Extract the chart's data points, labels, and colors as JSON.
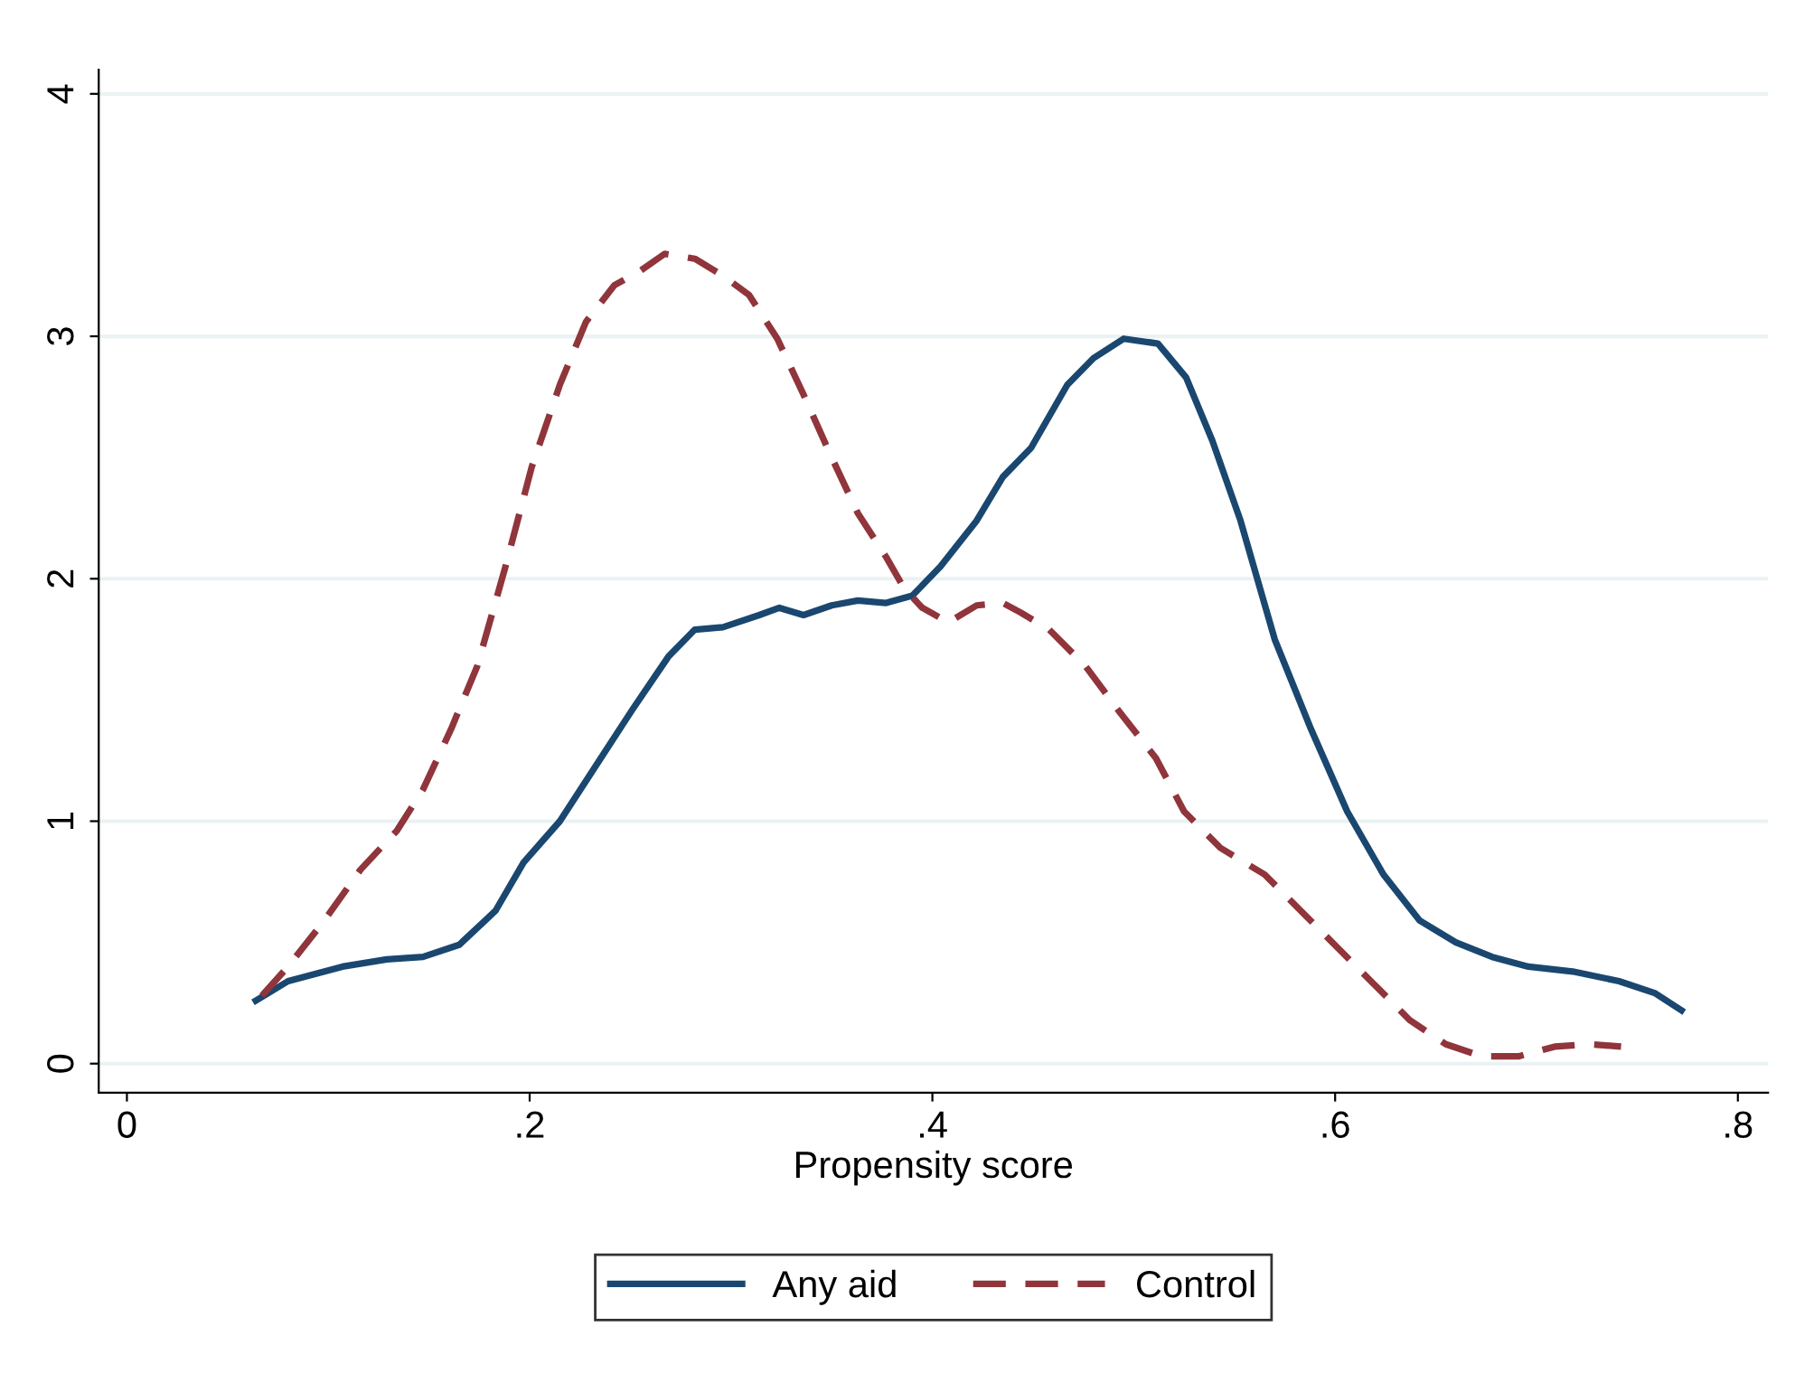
{
  "chart_data": {
    "type": "line",
    "xlabel": "Propensity score",
    "xlim": [
      -0.014,
      0.815
    ],
    "ylim": [
      -0.12,
      4.1
    ],
    "xticks": [
      0,
      {
        "value": 0.2,
        "label": ".2"
      },
      {
        "value": 0.4,
        "label": ".4"
      },
      {
        "value": 0.6,
        "label": ".6"
      },
      {
        "value": 0.8,
        "label": ".8"
      }
    ],
    "yticks": [
      0,
      1,
      2,
      3,
      4
    ],
    "grid": "y",
    "legend": "bottom",
    "series": [
      {
        "name": "Any aid",
        "color": "#1a476f",
        "line_style": "solid",
        "x": [
          0.064,
          0.08,
          0.107,
          0.129,
          0.147,
          0.165,
          0.183,
          0.197,
          0.215,
          0.233,
          0.251,
          0.269,
          0.282,
          0.296,
          0.314,
          0.324,
          0.336,
          0.35,
          0.363,
          0.377,
          0.39,
          0.404,
          0.422,
          0.435,
          0.449,
          0.467,
          0.48,
          0.495,
          0.512,
          0.526,
          0.539,
          0.553,
          0.57,
          0.588,
          0.606,
          0.624,
          0.642,
          0.66,
          0.678,
          0.696,
          0.718,
          0.741,
          0.759,
          0.772
        ],
        "values": [
          0.26,
          0.34,
          0.4,
          0.43,
          0.44,
          0.49,
          0.63,
          0.83,
          1.0,
          1.23,
          1.46,
          1.68,
          1.79,
          1.8,
          1.85,
          1.88,
          1.85,
          1.89,
          1.91,
          1.9,
          1.93,
          2.05,
          2.24,
          2.42,
          2.54,
          2.8,
          2.91,
          2.99,
          2.97,
          2.83,
          2.57,
          2.24,
          1.75,
          1.38,
          1.04,
          0.78,
          0.59,
          0.5,
          0.44,
          0.4,
          0.38,
          0.34,
          0.29,
          0.22
        ]
      },
      {
        "name": "Control",
        "color": "#90353b",
        "line_style": "dashed",
        "x": [
          0.067,
          0.08,
          0.098,
          0.116,
          0.134,
          0.147,
          0.161,
          0.174,
          0.188,
          0.201,
          0.215,
          0.228,
          0.242,
          0.255,
          0.267,
          0.282,
          0.296,
          0.309,
          0.323,
          0.336,
          0.35,
          0.363,
          0.377,
          0.386,
          0.395,
          0.408,
          0.422,
          0.435,
          0.444,
          0.458,
          0.476,
          0.493,
          0.511,
          0.525,
          0.543,
          0.565,
          0.583,
          0.601,
          0.619,
          0.637,
          0.655,
          0.673,
          0.691,
          0.709,
          0.727,
          0.742
        ],
        "values": [
          0.28,
          0.4,
          0.59,
          0.8,
          0.96,
          1.13,
          1.38,
          1.64,
          2.05,
          2.46,
          2.8,
          3.06,
          3.21,
          3.27,
          3.34,
          3.32,
          3.25,
          3.17,
          2.99,
          2.76,
          2.5,
          2.27,
          2.09,
          1.96,
          1.88,
          1.82,
          1.89,
          1.9,
          1.86,
          1.79,
          1.64,
          1.45,
          1.26,
          1.04,
          0.89,
          0.78,
          0.63,
          0.48,
          0.33,
          0.18,
          0.08,
          0.03,
          0.03,
          0.07,
          0.08,
          0.07
        ]
      }
    ]
  }
}
